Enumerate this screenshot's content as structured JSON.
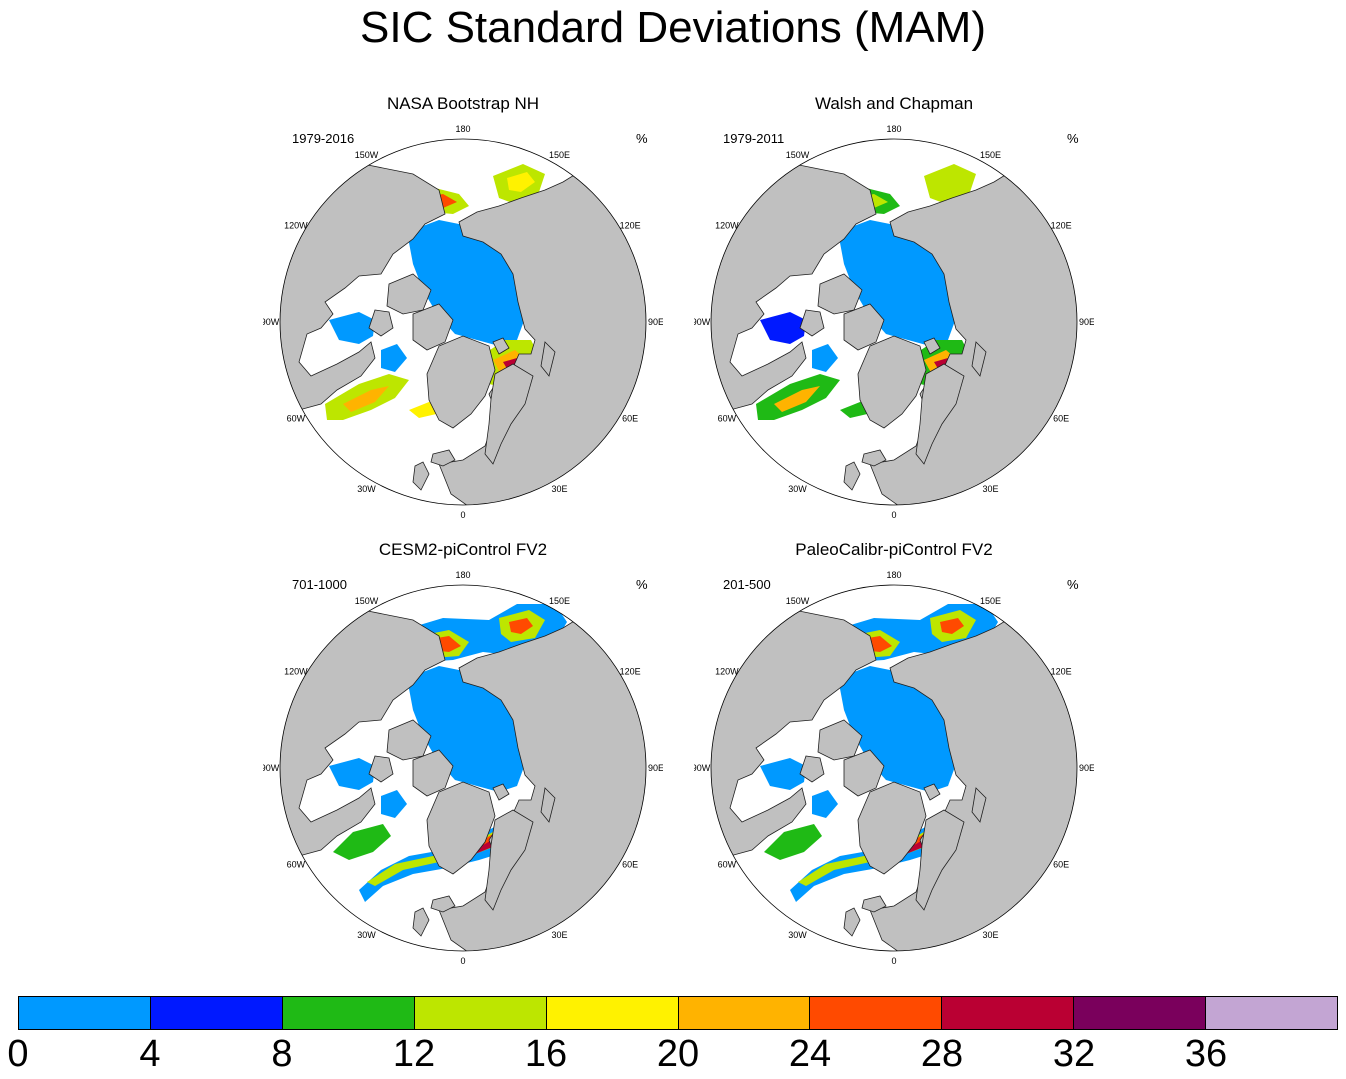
{
  "title": "SIC Standard Deviations (MAM)",
  "panels": [
    {
      "title": "NASA Bootstrap NH",
      "years": "1979-2016",
      "units": "%",
      "variant": 0
    },
    {
      "title": "Walsh and Chapman",
      "years": "1979-2011",
      "units": "%",
      "variant": 1
    },
    {
      "title": "CESM2-piControl FV2",
      "years": "701-1000",
      "units": "%",
      "variant": 2
    },
    {
      "title": "PaleoCalibr-piControl FV2",
      "years": "201-500",
      "units": "%",
      "variant": 3
    }
  ],
  "longitude_labels": [
    "180",
    "150E",
    "120E",
    "90E",
    "60E",
    "30E",
    "0",
    "30W",
    "60W",
    "90W",
    "120W",
    "150W"
  ],
  "colorbar": {
    "labels": [
      "0",
      "4",
      "8",
      "12",
      "16",
      "20",
      "24",
      "28",
      "32",
      "36"
    ],
    "colors": [
      "#0099ff",
      "#0019ff",
      "#1fba15",
      "#bde600",
      "#fff200",
      "#ffb300",
      "#ff4a00",
      "#ba0033",
      "#7a005c",
      "#c3a5d3"
    ]
  },
  "map_colors": {
    "land": "#c0c0c0",
    "ocean": "#ffffff",
    "coast": "#202020"
  }
}
